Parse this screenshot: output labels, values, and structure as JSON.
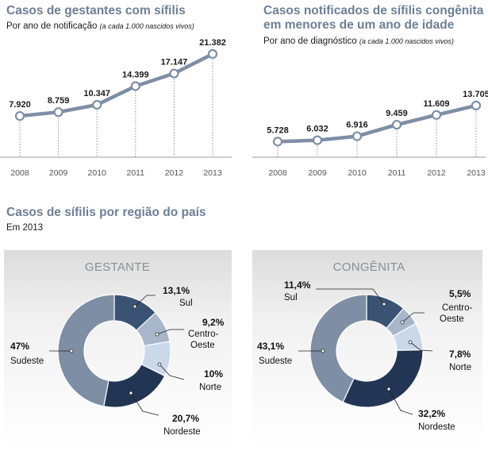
{
  "colors": {
    "title": "#6d7f95",
    "line": "#7d8ea5",
    "sul": "#3a5273",
    "centro_oeste": "#a7b6c8",
    "norte": "#c9d9ea",
    "nordeste": "#223554",
    "sudeste": "#7d8ea5",
    "panel_bg": "#e4e4e4"
  },
  "chart_data": [
    {
      "type": "line",
      "title": "Casos de gestantes com sífilis",
      "subtitle": "Por ano de notificação",
      "subtitle_note": "(a cada 1.000 nascidos vivos)",
      "x": [
        "2008",
        "2009",
        "2010",
        "2011",
        "2012",
        "2013"
      ],
      "values": [
        7920,
        8759,
        10347,
        14399,
        17147,
        21382
      ],
      "labels": [
        "7.920",
        "8.759",
        "10.347",
        "14.399",
        "17.147",
        "21.382"
      ]
    },
    {
      "type": "line",
      "title_lines": [
        "Casos notificados de sífilis congênita",
        "em menores de um ano de idade"
      ],
      "subtitle": "Por ano de diagnóstico",
      "subtitle_note": "(a cada 1.000 nascidos vivos)",
      "x": [
        "2008",
        "2009",
        "2010",
        "2011",
        "2012",
        "2013"
      ],
      "values": [
        5728,
        6032,
        6916,
        9459,
        11609,
        13705
      ],
      "labels": [
        "5.728",
        "6.032",
        "6.916",
        "9.459",
        "11.609",
        "13.705"
      ]
    },
    {
      "type": "pie",
      "title": "GESTANTE",
      "slices": [
        {
          "name": "Sul",
          "value": 13.1,
          "label": "13,1%"
        },
        {
          "name": "Centro-Oeste",
          "value": 9.2,
          "label": "9,2%"
        },
        {
          "name": "Norte",
          "value": 10,
          "label": "10%"
        },
        {
          "name": "Nordeste",
          "value": 20.7,
          "label": "20,7%"
        },
        {
          "name": "Sudeste",
          "value": 47,
          "label": "47%"
        }
      ]
    },
    {
      "type": "pie",
      "title": "CONGÊNITA",
      "slices": [
        {
          "name": "Sul",
          "value": 11.4,
          "label": "11,4%"
        },
        {
          "name": "Centro-Oeste",
          "value": 5.5,
          "label": "5,5%"
        },
        {
          "name": "Norte",
          "value": 7.8,
          "label": "7,8%"
        },
        {
          "name": "Nordeste",
          "value": 32.2,
          "label": "32,2%"
        },
        {
          "name": "Sudeste",
          "value": 43.1,
          "label": "43,1%"
        }
      ]
    }
  ],
  "section": {
    "title": "Casos de sífilis por região do país",
    "subtitle": "Em 2013"
  },
  "region_labels": {
    "centro_a": "Centro-",
    "centro_b": "Oeste",
    "centro_c": "Centro-",
    "centro_d": "Oeste"
  }
}
